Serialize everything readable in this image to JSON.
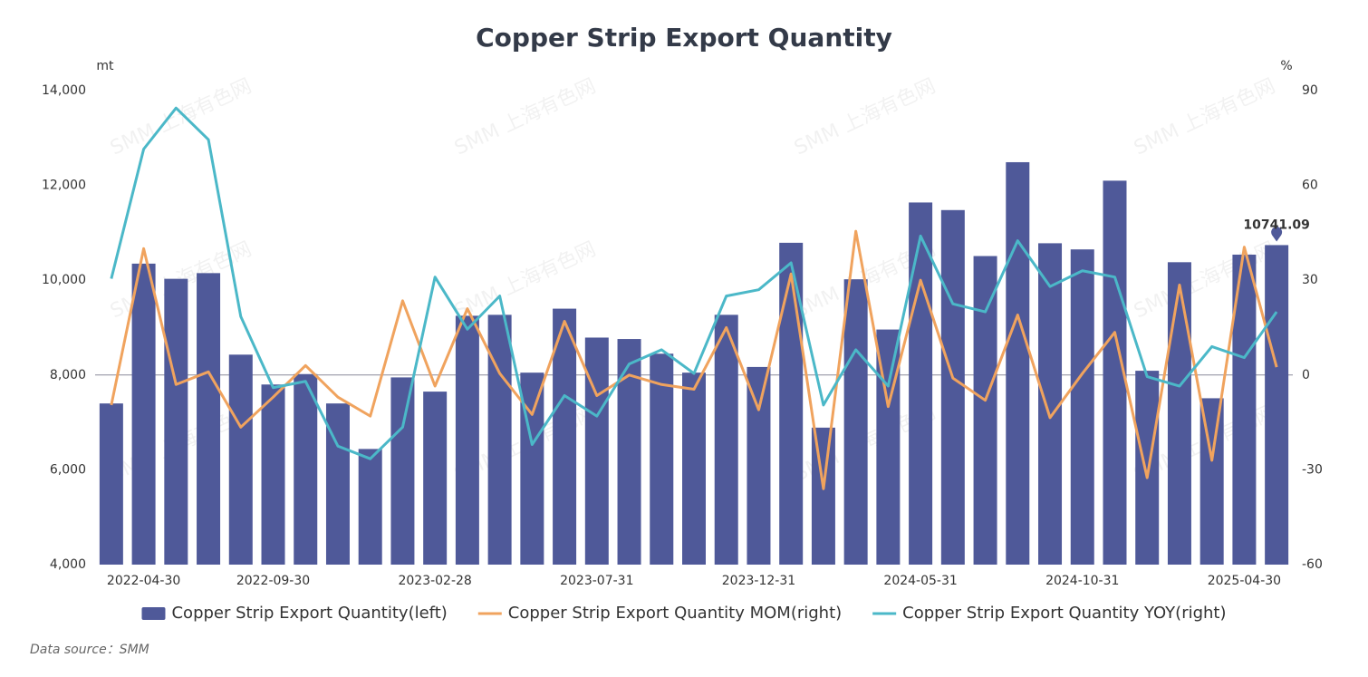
{
  "chart_data": {
    "type": "bar-line",
    "title": "Copper Strip Export Quantity",
    "y_unit": "mt",
    "y2_unit": "%",
    "source": "Data source：SMM",
    "watermark": "SMM 上海有色网",
    "categories": [
      null,
      "2022-04-30",
      null,
      null,
      null,
      "2022-09-30",
      null,
      null,
      null,
      null,
      "2023-02-28",
      null,
      null,
      null,
      null,
      "2023-07-31",
      null,
      null,
      null,
      null,
      "2023-12-31",
      null,
      null,
      null,
      null,
      "2024-05-31",
      null,
      null,
      null,
      null,
      "2024-10-31",
      null,
      null,
      null,
      null,
      "2025-04-30",
      null
    ],
    "ylim": [
      4000,
      14000
    ],
    "yticks": [
      {
        "value": 4000,
        "label": "4,000"
      },
      {
        "value": 6000,
        "label": "6,000"
      },
      {
        "value": 8000,
        "label": "8,000"
      },
      {
        "value": 10000,
        "label": "10,000"
      },
      {
        "value": 12000,
        "label": "12,000"
      },
      {
        "value": 14000,
        "label": "14,000"
      }
    ],
    "y2lim": [
      -60,
      90
    ],
    "y2ticks": [
      -60,
      -30,
      0,
      30,
      60,
      90
    ],
    "series": [
      {
        "name": "Copper Strip Export Quantity(left)",
        "type": "bar",
        "color": "#4f5999",
        "values": [
          7400,
          10350,
          10030,
          10150,
          8430,
          7800,
          8020,
          7400,
          6440,
          7950,
          7650,
          9250,
          9270,
          8050,
          9400,
          8790,
          8760,
          8450,
          8050,
          9270,
          8170,
          10790,
          6890,
          10020,
          8960,
          11640,
          11480,
          10510,
          12490,
          10780,
          10650,
          12100,
          8090,
          10380,
          7510,
          10540,
          10741.09
        ]
      },
      {
        "name": "Copper Strip Export Quantity MOM(right)",
        "type": "line",
        "axis": "y2",
        "color": "#f0a35e",
        "values": [
          -9.5,
          40,
          -3,
          1,
          -16.5,
          -7,
          3,
          -7,
          -13,
          23.5,
          -3.5,
          21,
          0.5,
          -12.5,
          17,
          -6.5,
          0,
          -3,
          -4.5,
          15,
          -11,
          32,
          -36,
          45.5,
          -10,
          30,
          -1,
          -8,
          19,
          -13.5,
          0.5,
          13.5,
          -32.5,
          28.5,
          -27,
          40.5,
          2.5
        ]
      },
      {
        "name": "Copper Strip Export Quantity YOY(right)",
        "type": "line",
        "axis": "y2",
        "color": "#4bb8c8",
        "values": [
          30.5,
          71.5,
          84.5,
          74.5,
          18.5,
          -4,
          -2,
          -22.5,
          -26.5,
          -16.5,
          31,
          14.5,
          25,
          -22,
          -6.5,
          -13,
          3.5,
          8,
          0.5,
          25,
          27,
          35.5,
          -9.5,
          8,
          -3.5,
          44,
          22.5,
          20,
          42.5,
          28,
          33,
          31,
          -0.5,
          -3.5,
          9,
          5.5,
          20
        ]
      }
    ]
  }
}
